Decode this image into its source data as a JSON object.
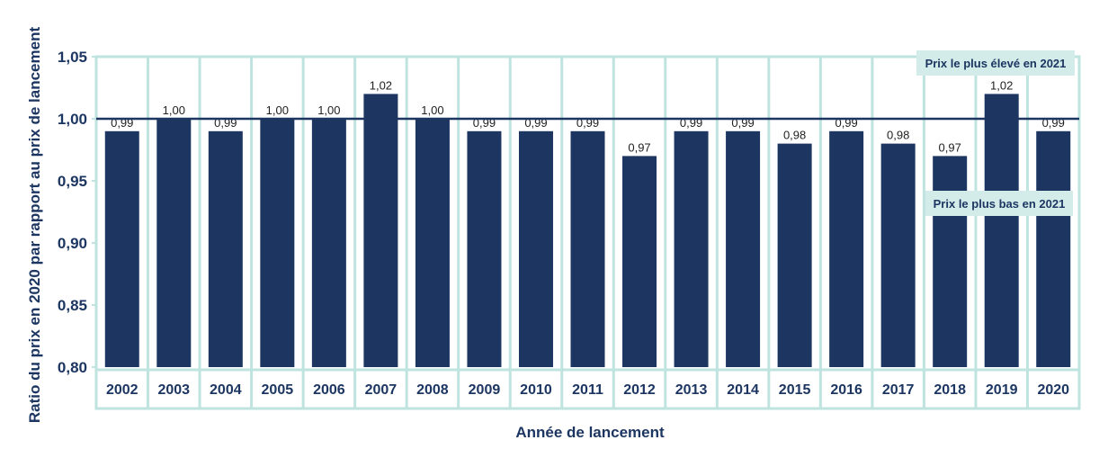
{
  "chart_data": {
    "type": "bar",
    "categories": [
      "2002",
      "2003",
      "2004",
      "2005",
      "2006",
      "2007",
      "2008",
      "2009",
      "2010",
      "2011",
      "2012",
      "2013",
      "2014",
      "2015",
      "2016",
      "2017",
      "2018",
      "2019",
      "2020"
    ],
    "values": [
      0.99,
      1.0,
      0.99,
      1.0,
      1.0,
      1.02,
      1.0,
      0.99,
      0.99,
      0.99,
      0.97,
      0.99,
      0.99,
      0.98,
      0.99,
      0.98,
      0.97,
      1.02,
      0.99
    ],
    "value_labels": [
      "0,99",
      "1,00",
      "0,99",
      "1,00",
      "1,00",
      "1,02",
      "1,00",
      "0,99",
      "0,99",
      "0,99",
      "0,97",
      "0,99",
      "0,99",
      "0,98",
      "0,99",
      "0,98",
      "0,97",
      "1,02",
      "0,99"
    ],
    "xlabel": "Année de lancement",
    "ylabel": "Ratio du prix en 2020 par rapport au prix de lancement",
    "ylim": [
      0.8,
      1.05
    ],
    "yticks": [
      0.8,
      0.85,
      0.9,
      0.95,
      1.0,
      1.05
    ],
    "ytick_labels": [
      "0,80",
      "0,85",
      "0,90",
      "0,95",
      "1,00",
      "1,05"
    ],
    "reference_line": 1.0,
    "annotations": [
      "Prix le plus élevé en 2021",
      "Prix le plus bas en 2021"
    ],
    "grid": false,
    "colors": {
      "bar": "#1c3661",
      "cell_border": "#bfe3df",
      "annotation_bg": "#d3ecea",
      "text": "#1c3661"
    }
  }
}
